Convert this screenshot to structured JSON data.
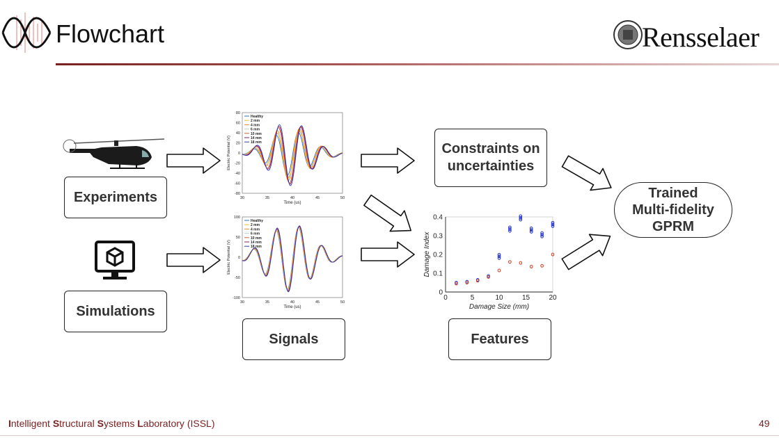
{
  "slide": {
    "title": "Flowchart",
    "brand": "Rensselaer",
    "page_number": "49"
  },
  "footer": {
    "lab_letters": [
      "I",
      "S",
      "S",
      "L"
    ],
    "lab_rests": [
      "ntelligent ",
      "tructural ",
      "ystems ",
      "aboratory (ISSL)"
    ]
  },
  "boxes": {
    "experiments": "Experiments",
    "simulations": "Simulations",
    "signals": "Signals",
    "features": "Features",
    "constraints": [
      "Constraints on",
      "uncertainties"
    ],
    "gprm": [
      "Trained",
      "Multi-fidelity",
      "GPRM"
    ]
  },
  "colors": {
    "accent": "#7a1f1f"
  },
  "chart_data": [
    {
      "type": "line",
      "name": "experimental-signals",
      "xlabel": "Time (us)",
      "ylabel": "Electric Potential (V)",
      "xlim": [
        30,
        50
      ],
      "ylim": [
        -80,
        80
      ],
      "x_ticks": [
        30,
        35,
        40,
        45,
        50
      ],
      "y_ticks": [
        -80,
        -60,
        -40,
        -20,
        0,
        20,
        40,
        60,
        80
      ],
      "legend": [
        "Healthy",
        "2 mm",
        "4 mm",
        "6 mm",
        "10 mm",
        "14 mm",
        "18 mm"
      ],
      "legend_position": "top-left",
      "series_colors": [
        "#2a6fd6",
        "#e8c021",
        "#e88a21",
        "#c8c8c8",
        "#e25c2a",
        "#8a1f6d",
        "#2d3ba8"
      ],
      "amplitudes": [
        45,
        50,
        55,
        48,
        60,
        62,
        65
      ],
      "phase_shifts": [
        0,
        0.15,
        0.3,
        0.45,
        0.6,
        0.75,
        0.9
      ]
    },
    {
      "type": "line",
      "name": "simulated-signals",
      "xlabel": "Time (us)",
      "ylabel": "Electric Potential (V)",
      "xlim": [
        30,
        50
      ],
      "ylim": [
        -100,
        100
      ],
      "x_ticks": [
        30,
        35,
        40,
        45,
        50
      ],
      "y_ticks": [
        -100,
        -50,
        0,
        50,
        100
      ],
      "legend": [
        "Healthy",
        "2 mm",
        "4 mm",
        "6 mm",
        "10 mm",
        "14 mm",
        "18 mm"
      ],
      "legend_position": "top-left",
      "series_colors": [
        "#2a6fd6",
        "#e8c021",
        "#e88a21",
        "#c8c8c8",
        "#e25c2a",
        "#8a1f6d",
        "#2d3ba8"
      ],
      "amplitudes": [
        80,
        80,
        82,
        82,
        84,
        84,
        86
      ],
      "phase_shifts": [
        0,
        0.05,
        0.1,
        0.15,
        0.2,
        0.25,
        0.3
      ]
    },
    {
      "type": "scatter",
      "name": "features",
      "xlabel": "Damage Size (mm)",
      "ylabel": "Damage Index",
      "xlim": [
        0,
        20
      ],
      "ylim": [
        0,
        0.4
      ],
      "x_ticks": [
        0,
        5,
        10,
        15,
        20
      ],
      "y_ticks": [
        0,
        0.1,
        0.2,
        0.3,
        0.4
      ],
      "series": [
        {
          "color": "#1a2bd6",
          "x": [
            2,
            4,
            6,
            8,
            10,
            12,
            14,
            16,
            18,
            20
          ],
          "y": [
            0.05,
            0.055,
            0.065,
            0.085,
            0.19,
            0.335,
            0.395,
            0.33,
            0.305,
            0.36
          ]
        },
        {
          "color": "#d63a1a",
          "x": [
            2,
            4,
            6,
            8,
            10,
            12,
            14,
            16,
            18,
            20
          ],
          "y": [
            0.045,
            0.05,
            0.06,
            0.08,
            0.115,
            0.16,
            0.155,
            0.135,
            0.14,
            0.2
          ]
        }
      ]
    }
  ]
}
